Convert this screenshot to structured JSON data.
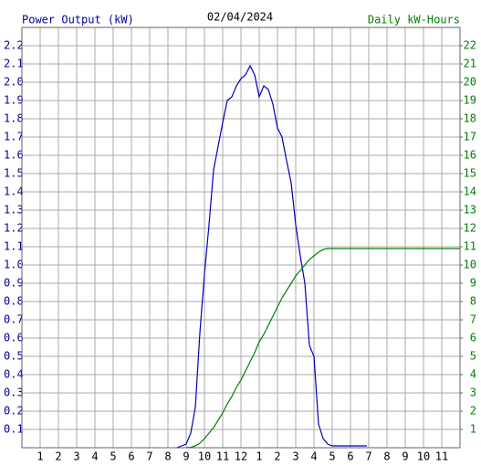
{
  "chart_data": {
    "type": "line",
    "title": "02/04/2024",
    "y_label": "Power Output (kW)",
    "y2_label": "Daily kW-Hours",
    "xlim": [
      0,
      24
    ],
    "ylim": [
      0,
      2.3
    ],
    "y2lim": [
      0,
      23
    ],
    "grid": true,
    "xticks": [
      1,
      2,
      3,
      4,
      5,
      6,
      7,
      8,
      9,
      10,
      11,
      12,
      {
        "value": 13,
        "label": "1"
      },
      {
        "value": 14,
        "label": "2"
      },
      {
        "value": 15,
        "label": "3"
      },
      {
        "value": 16,
        "label": "4"
      },
      {
        "value": 17,
        "label": "5"
      },
      {
        "value": 18,
        "label": "6"
      },
      {
        "value": 19,
        "label": "7"
      },
      {
        "value": 20,
        "label": "8"
      },
      {
        "value": 21,
        "label": "9"
      },
      {
        "value": 22,
        "label": "10"
      },
      {
        "value": 23,
        "label": "11"
      }
    ],
    "yticks": [
      0.1,
      0.2,
      0.3,
      0.4,
      0.5,
      0.6,
      0.7,
      0.8,
      0.9,
      {
        "value": 1,
        "label": "1.0"
      },
      1.1,
      1.2,
      1.3,
      1.4,
      1.5,
      1.6,
      1.7,
      1.8,
      1.9,
      {
        "value": 2,
        "label": "2.0"
      },
      2.1,
      2.2
    ],
    "y2ticks": [
      1,
      2,
      3,
      4,
      5,
      6,
      7,
      8,
      9,
      10,
      11,
      12,
      13,
      14,
      15,
      16,
      17,
      18,
      19,
      20,
      21,
      22
    ],
    "y_color": "#0000a0",
    "y2_color": "#008000",
    "series": [
      {
        "name": "Power Output (kW)",
        "color": "#0000c0",
        "x": [
          8.5,
          8.75,
          9,
          9.25,
          9.5,
          9.75,
          10,
          10.25,
          10.5,
          10.75,
          11,
          11.25,
          11.5,
          11.75,
          12,
          12.25,
          12.5,
          12.75,
          13,
          13.25,
          13.5,
          13.75,
          14,
          14.25,
          14.5,
          14.75,
          15,
          15.25,
          15.5,
          15.75,
          16,
          16.25,
          16.5,
          16.75,
          17,
          17.5,
          18,
          18.9
        ],
        "values": [
          0,
          0.01,
          0.02,
          0.08,
          0.22,
          0.63,
          0.95,
          1.22,
          1.52,
          1.65,
          1.78,
          1.9,
          1.92,
          1.98,
          2.02,
          2.04,
          2.09,
          2.04,
          1.92,
          1.98,
          1.96,
          1.88,
          1.75,
          1.7,
          1.57,
          1.45,
          1.22,
          1.05,
          0.9,
          0.56,
          0.5,
          0.13,
          0.05,
          0.02,
          0.01,
          0.01,
          0.01,
          0.01
        ]
      },
      {
        "name": "Daily kW-Hours",
        "color": "#008000",
        "axis": "y2",
        "x": [
          9,
          9.25,
          9.5,
          9.75,
          10,
          10.25,
          10.5,
          10.75,
          11,
          11.25,
          11.5,
          11.75,
          12,
          12.25,
          12.5,
          12.75,
          13,
          13.25,
          13.5,
          13.75,
          14,
          14.25,
          14.5,
          14.75,
          15,
          15.25,
          15.5,
          15.75,
          16,
          16.25,
          16.5,
          16.75,
          17,
          24
        ],
        "values": [
          0,
          0.02,
          0.1,
          0.25,
          0.5,
          0.8,
          1.1,
          1.5,
          1.9,
          2.4,
          2.8,
          3.3,
          3.7,
          4.2,
          4.7,
          5.2,
          5.8,
          6.2,
          6.7,
          7.2,
          7.7,
          8.2,
          8.6,
          9,
          9.4,
          9.7,
          10,
          10.3,
          10.5,
          10.7,
          10.85,
          10.9,
          10.9,
          10.9
        ]
      }
    ]
  }
}
